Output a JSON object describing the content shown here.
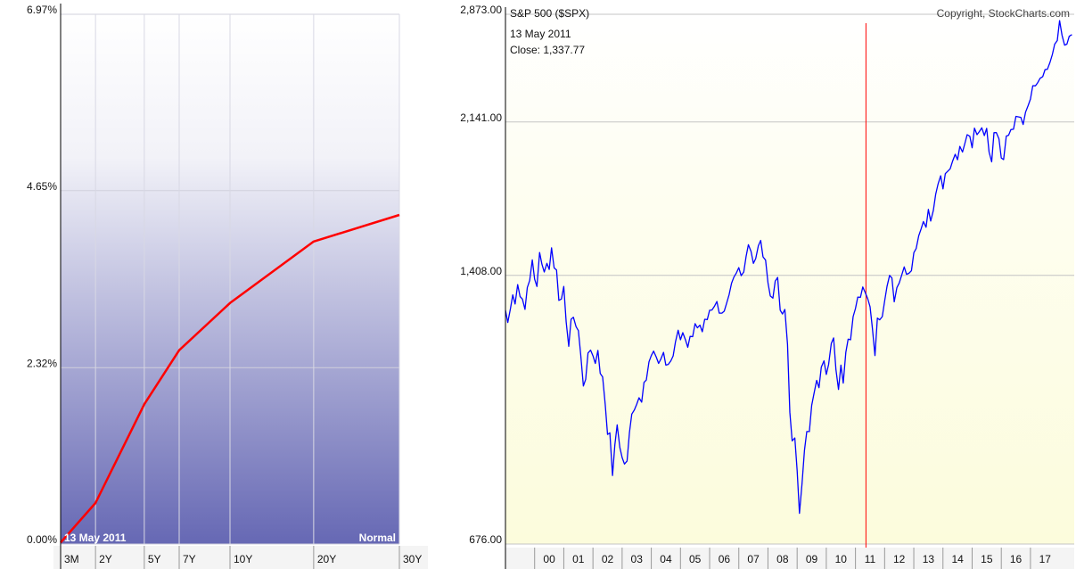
{
  "chart_data": [
    {
      "type": "line",
      "categories": [
        "3M",
        "2Y",
        "5Y",
        "7Y",
        "10Y",
        "20Y",
        "30Y"
      ],
      "values": [
        0.02,
        0.54,
        1.84,
        2.55,
        3.17,
        3.98,
        4.33
      ],
      "color": "#ff0000",
      "ylim": [
        0,
        6.97
      ],
      "yticks": [
        {
          "value": 0,
          "label": "0.00%"
        },
        {
          "value": 2.32,
          "label": "2.32%"
        },
        {
          "value": 4.65,
          "label": "4.65%"
        },
        {
          "value": 6.97,
          "label": "6.97%"
        }
      ],
      "grid": true,
      "annotations": [
        "13  May 2011",
        "Normal"
      ]
    },
    {
      "type": "line",
      "title": "S&P 500 ($SPX)",
      "copyright": "Copyright, StockCharts.com",
      "color": "#0000ff",
      "log_scale": true,
      "grid": true,
      "xlim": [
        1999,
        2018.5
      ],
      "xticks": [
        {
          "value": 2000,
          "label": "00"
        },
        {
          "value": 2001,
          "label": "01"
        },
        {
          "value": 2002,
          "label": "02"
        },
        {
          "value": 2003,
          "label": "03"
        },
        {
          "value": 2004,
          "label": "04"
        },
        {
          "value": 2005,
          "label": "05"
        },
        {
          "value": 2006,
          "label": "06"
        },
        {
          "value": 2007,
          "label": "07"
        },
        {
          "value": 2008,
          "label": "08"
        },
        {
          "value": 2009,
          "label": "09"
        },
        {
          "value": 2010,
          "label": "10"
        },
        {
          "value": 2011,
          "label": "11"
        },
        {
          "value": 2012,
          "label": "12"
        },
        {
          "value": 2013,
          "label": "13"
        },
        {
          "value": 2014,
          "label": "14"
        },
        {
          "value": 2015,
          "label": "15"
        },
        {
          "value": 2016,
          "label": "16"
        },
        {
          "value": 2017,
          "label": "17"
        }
      ],
      "ylim": [
        676,
        2873
      ],
      "yticks": [
        {
          "value": 676,
          "label": "676.00"
        },
        {
          "value": 1408,
          "label": "1,408.00"
        },
        {
          "value": 2141,
          "label": "2,141.00"
        },
        {
          "value": 2873,
          "label": "2,873.00"
        }
      ],
      "marker": {
        "x": 2011.36,
        "color": "#ff0000",
        "date": "13  May 2011",
        "close": "Close: 1,337.77"
      },
      "x": [
        1999.0,
        1999.08,
        1999.17,
        1999.25,
        1999.33,
        1999.42,
        1999.5,
        1999.58,
        1999.67,
        1999.75,
        1999.83,
        1999.92,
        2000.0,
        2000.08,
        2000.17,
        2000.25,
        2000.33,
        2000.42,
        2000.5,
        2000.58,
        2000.67,
        2000.75,
        2000.83,
        2000.92,
        2001.0,
        2001.08,
        2001.17,
        2001.25,
        2001.33,
        2001.42,
        2001.5,
        2001.58,
        2001.67,
        2001.75,
        2001.83,
        2001.92,
        2002.0,
        2002.08,
        2002.17,
        2002.25,
        2002.33,
        2002.42,
        2002.5,
        2002.58,
        2002.67,
        2002.75,
        2002.83,
        2002.92,
        2003.0,
        2003.08,
        2003.17,
        2003.25,
        2003.33,
        2003.42,
        2003.5,
        2003.58,
        2003.67,
        2003.75,
        2003.83,
        2003.92,
        2004.0,
        2004.08,
        2004.17,
        2004.25,
        2004.33,
        2004.42,
        2004.5,
        2004.58,
        2004.67,
        2004.75,
        2004.83,
        2004.92,
        2005.0,
        2005.08,
        2005.17,
        2005.25,
        2005.33,
        2005.42,
        2005.5,
        2005.58,
        2005.67,
        2005.75,
        2005.83,
        2005.92,
        2006.0,
        2006.08,
        2006.17,
        2006.25,
        2006.33,
        2006.42,
        2006.5,
        2006.58,
        2006.67,
        2006.75,
        2006.83,
        2006.92,
        2007.0,
        2007.08,
        2007.17,
        2007.25,
        2007.33,
        2007.42,
        2007.5,
        2007.58,
        2007.67,
        2007.75,
        2007.83,
        2007.92,
        2008.0,
        2008.08,
        2008.17,
        2008.25,
        2008.33,
        2008.42,
        2008.5,
        2008.58,
        2008.67,
        2008.75,
        2008.83,
        2008.92,
        2009.0,
        2009.08,
        2009.17,
        2009.25,
        2009.33,
        2009.42,
        2009.5,
        2009.58,
        2009.67,
        2009.75,
        2009.83,
        2009.92,
        2010.0,
        2010.08,
        2010.17,
        2010.25,
        2010.33,
        2010.42,
        2010.5,
        2010.58,
        2010.67,
        2010.75,
        2010.83,
        2010.92,
        2011.0,
        2011.08,
        2011.17,
        2011.25,
        2011.33,
        2011.42,
        2011.5,
        2011.58,
        2011.67,
        2011.75,
        2011.83,
        2011.92,
        2012.0,
        2012.08,
        2012.17,
        2012.25,
        2012.33,
        2012.42,
        2012.5,
        2012.58,
        2012.67,
        2012.75,
        2012.83,
        2012.92,
        2013.0,
        2013.08,
        2013.17,
        2013.25,
        2013.33,
        2013.42,
        2013.5,
        2013.58,
        2013.67,
        2013.75,
        2013.83,
        2013.92,
        2014.0,
        2014.08,
        2014.17,
        2014.25,
        2014.33,
        2014.42,
        2014.5,
        2014.58,
        2014.67,
        2014.75,
        2014.83,
        2014.92,
        2015.0,
        2015.08,
        2015.17,
        2015.25,
        2015.33,
        2015.42,
        2015.5,
        2015.58,
        2015.67,
        2015.75,
        2015.83,
        2015.92,
        2016.0,
        2016.08,
        2016.17,
        2016.25,
        2016.33,
        2016.42,
        2016.5,
        2016.58,
        2016.67,
        2016.75,
        2016.83,
        2016.92,
        2017.0,
        2017.08,
        2017.17,
        2017.25,
        2017.33,
        2017.42,
        2017.5,
        2017.58,
        2017.67,
        2017.75,
        2017.83,
        2017.92,
        2018.0,
        2018.08,
        2018.17,
        2018.25,
        2018.33,
        2018.42
      ],
      "values": [
        1280,
        1238,
        1286,
        1335,
        1302,
        1373,
        1329,
        1320,
        1283,
        1362,
        1389,
        1469,
        1394,
        1366,
        1499,
        1452,
        1421,
        1455,
        1431,
        1518,
        1437,
        1429,
        1315,
        1320,
        1366,
        1240,
        1160,
        1249,
        1256,
        1224,
        1211,
        1134,
        1041,
        1060,
        1139,
        1148,
        1130,
        1107,
        1147,
        1077,
        1067,
        990,
        912,
        916,
        815,
        886,
        936,
        880,
        856,
        841,
        848,
        917,
        964,
        975,
        990,
        1008,
        996,
        1051,
        1058,
        1112,
        1131,
        1145,
        1126,
        1107,
        1121,
        1141,
        1102,
        1104,
        1115,
        1130,
        1174,
        1212,
        1181,
        1204,
        1181,
        1157,
        1192,
        1191,
        1234,
        1220,
        1229,
        1207,
        1249,
        1248,
        1280,
        1281,
        1295,
        1311,
        1270,
        1270,
        1277,
        1304,
        1336,
        1378,
        1401,
        1418,
        1438,
        1407,
        1421,
        1482,
        1531,
        1503,
        1455,
        1474,
        1527,
        1549,
        1481,
        1468,
        1379,
        1331,
        1323,
        1386,
        1400,
        1280,
        1267,
        1283,
        1166,
        969,
        896,
        903,
        826,
        735,
        798,
        873,
        919,
        919,
        987,
        1021,
        1057,
        1036,
        1096,
        1115,
        1074,
        1104,
        1169,
        1187,
        1089,
        1031,
        1102,
        1049,
        1141,
        1183,
        1181,
        1258,
        1286,
        1327,
        1326,
        1364,
        1345,
        1321,
        1292,
        1219,
        1131,
        1253,
        1247,
        1258,
        1312,
        1366,
        1408,
        1398,
        1310,
        1362,
        1379,
        1407,
        1441,
        1412,
        1416,
        1426,
        1498,
        1515,
        1569,
        1598,
        1631,
        1606,
        1686,
        1633,
        1682,
        1757,
        1806,
        1848,
        1783,
        1859,
        1872,
        1884,
        1924,
        1960,
        1931,
        2003,
        1972,
        2018,
        2068,
        2059,
        1995,
        2105,
        2068,
        2086,
        2107,
        2063,
        2104,
        1972,
        1920,
        2079,
        2080,
        2044,
        1940,
        1932,
        2060,
        2065,
        2097,
        2099,
        2174,
        2171,
        2168,
        2126,
        2199,
        2239,
        2279,
        2364,
        2363,
        2384,
        2412,
        2423,
        2470,
        2472,
        2519,
        2575,
        2648,
        2674,
        2824,
        2714,
        2641,
        2648,
        2705,
        2718
      ]
    }
  ]
}
